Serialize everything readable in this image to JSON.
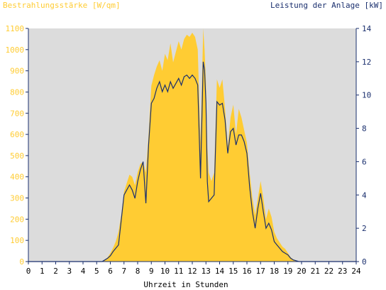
{
  "chart_data": {
    "type": "area",
    "title_left": "Bestrahlungsstärke [W/qm]",
    "title_right": "Leistung der Anlage [kW]",
    "xlabel": "Uhrzeit in Stunden",
    "xlim": [
      0,
      24
    ],
    "ylim_left": [
      0,
      1100
    ],
    "ylim_right": [
      0,
      14
    ],
    "x_ticks": [
      "0",
      "1",
      "2",
      "3",
      "4",
      "5",
      "6",
      "7",
      "8",
      "9",
      "10",
      "11",
      "12",
      "13",
      "14",
      "15",
      "16",
      "17",
      "18",
      "19",
      "20",
      "21",
      "22",
      "23",
      "24"
    ],
    "y_ticks_left": [
      "0",
      "100",
      "200",
      "300",
      "400",
      "500",
      "600",
      "700",
      "800",
      "900",
      "1000",
      "1100"
    ],
    "y_ticks_right": [
      "0",
      "2",
      "4",
      "6",
      "8",
      "10",
      "12",
      "14"
    ],
    "grid": false,
    "series": [
      {
        "name": "Bestrahlungsstärke [W/qm]",
        "axis": "left",
        "x": [
          0,
          5.4,
          5.6,
          5.8,
          6.0,
          6.2,
          6.4,
          6.6,
          6.8,
          7.0,
          7.2,
          7.4,
          7.6,
          7.8,
          8.0,
          8.2,
          8.4,
          8.6,
          8.8,
          9.0,
          9.2,
          9.4,
          9.6,
          9.8,
          10.0,
          10.2,
          10.4,
          10.6,
          10.8,
          11.0,
          11.2,
          11.4,
          11.6,
          11.8,
          12.0,
          12.2,
          12.4,
          12.6,
          12.8,
          12.9,
          13.0,
          13.1,
          13.2,
          13.4,
          13.6,
          13.8,
          14.0,
          14.2,
          14.4,
          14.6,
          14.8,
          15.0,
          15.2,
          15.4,
          15.6,
          15.8,
          16.0,
          16.2,
          16.4,
          16.6,
          16.8,
          17.0,
          17.2,
          17.4,
          17.6,
          17.8,
          18.0,
          18.2,
          18.4,
          18.6,
          18.8,
          19.0,
          19.2,
          19.4,
          19.6,
          19.8,
          20.0,
          20.2,
          20.4,
          24
        ],
        "values": [
          0,
          0,
          8,
          20,
          40,
          65,
          95,
          140,
          220,
          330,
          370,
          410,
          400,
          360,
          420,
          460,
          470,
          420,
          600,
          830,
          880,
          920,
          950,
          900,
          980,
          950,
          1030,
          940,
          990,
          1040,
          1000,
          1050,
          1070,
          1060,
          1080,
          1060,
          1000,
          560,
          1100,
          1000,
          840,
          540,
          420,
          380,
          420,
          860,
          820,
          860,
          720,
          540,
          680,
          740,
          600,
          720,
          680,
          620,
          560,
          420,
          300,
          220,
          300,
          380,
          300,
          200,
          250,
          210,
          140,
          110,
          90,
          70,
          60,
          40,
          20,
          10,
          5,
          0,
          0,
          0,
          0,
          0
        ],
        "color": "#ffcc33"
      },
      {
        "name": "Leistung der Anlage [kW]",
        "axis": "right",
        "x": [
          0,
          5.4,
          5.6,
          5.8,
          6.0,
          6.2,
          6.4,
          6.6,
          6.8,
          7.0,
          7.2,
          7.4,
          7.6,
          7.8,
          8.0,
          8.2,
          8.4,
          8.6,
          8.8,
          9.0,
          9.2,
          9.4,
          9.6,
          9.8,
          10.0,
          10.2,
          10.4,
          10.6,
          10.8,
          11.0,
          11.2,
          11.4,
          11.6,
          11.8,
          12.0,
          12.2,
          12.4,
          12.6,
          12.8,
          12.9,
          13.0,
          13.1,
          13.2,
          13.4,
          13.6,
          13.8,
          14.0,
          14.2,
          14.4,
          14.6,
          14.8,
          15.0,
          15.2,
          15.4,
          15.6,
          15.8,
          16.0,
          16.2,
          16.4,
          16.6,
          16.8,
          17.0,
          17.2,
          17.4,
          17.6,
          17.8,
          18.0,
          18.2,
          18.4,
          18.6,
          18.8,
          19.0,
          19.2,
          19.4,
          19.6,
          19.8,
          20.0,
          20.2,
          20.4,
          24
        ],
        "values": [
          0,
          0,
          0.1,
          0.2,
          0.35,
          0.6,
          0.8,
          1.0,
          2.5,
          4.0,
          4.3,
          4.6,
          4.3,
          3.8,
          4.8,
          5.5,
          6.0,
          3.5,
          7.0,
          9.5,
          9.8,
          10.4,
          10.8,
          10.2,
          10.6,
          10.2,
          10.8,
          10.4,
          10.7,
          11.0,
          10.6,
          11.1,
          11.2,
          11.0,
          11.2,
          11.0,
          10.6,
          5.0,
          12.0,
          11.5,
          9.5,
          4.8,
          3.6,
          3.8,
          4.0,
          9.6,
          9.4,
          9.5,
          8.5,
          6.5,
          7.8,
          8.0,
          7.0,
          7.6,
          7.6,
          7.2,
          6.5,
          4.5,
          3.0,
          2.0,
          3.2,
          4.1,
          3.0,
          2.0,
          2.3,
          1.9,
          1.2,
          1.0,
          0.8,
          0.6,
          0.5,
          0.4,
          0.2,
          0.1,
          0.05,
          0,
          0,
          0,
          0,
          0
        ],
        "color": "#1a2f6e"
      }
    ],
    "colors": {
      "plot_bg": "#dcdcdc",
      "axis_line": "#1a2f6e",
      "left_axis_text": "#ffcc33",
      "right_axis_text": "#1a2f6e"
    }
  }
}
